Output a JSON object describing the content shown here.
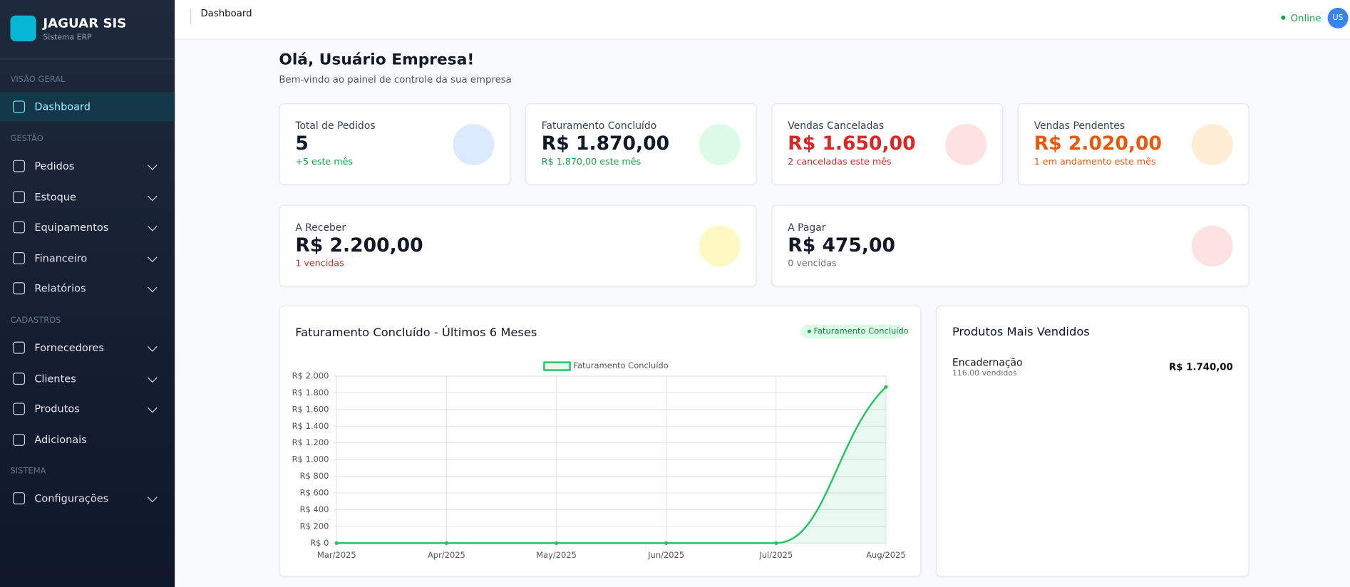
{
  "brand": {
    "name": "JAGUAR SIS",
    "subtitle": "Sistema ERP"
  },
  "sidebar": {
    "sections": [
      {
        "title": "VISÃO GERAL",
        "items": [
          "Dashboard"
        ]
      },
      {
        "title": "GESTÃO",
        "items": [
          "Pedidos",
          "Estoque",
          "Equipamentos",
          "Financeiro",
          "Relatórios"
        ]
      },
      {
        "title": "CADASTROS",
        "items": [
          "Fornecedores",
          "Clientes",
          "Produtos",
          "Adicionais"
        ]
      },
      {
        "title": "SISTEMA",
        "items": [
          "Configurações"
        ]
      }
    ]
  },
  "header": {
    "breadcrumb": "Dashboard",
    "status": "Online",
    "avatar": "US"
  },
  "greeting": {
    "title": "Olá, Usuário Empresa!",
    "subtitle": "Bem-vindo ao painel de controle da sua empresa"
  },
  "cards": [
    {
      "label": "Total de Pedidos",
      "value": "5",
      "note": "+5 este mês"
    },
    {
      "label": "Faturamento Concluído",
      "value": "R$ 1.870,00",
      "note": "R$ 1.870,00 este mês"
    },
    {
      "label": "Vendas Canceladas",
      "value": "R$ 1.650,00",
      "note": "2 canceladas este mês"
    },
    {
      "label": "Vendas Pendentes",
      "value": "R$ 2.020,00",
      "note": "1 em andamento este mês"
    },
    {
      "label": "A Receber",
      "value": "R$ 2.200,00",
      "note": "1 vencidas"
    },
    {
      "label": "A Pagar",
      "value": "R$ 475,00",
      "note": "0 vencidas"
    }
  ],
  "chart_data": {
    "type": "line",
    "title": "Faturamento Concluído - Últimos 6 Meses",
    "badge": "Faturamento Concluído",
    "categories": [
      "Mar/2025",
      "Apr/2025",
      "May/2025",
      "Jun/2025",
      "Jul/2025",
      "Aug/2025"
    ],
    "series": [
      {
        "name": "Faturamento Concluído",
        "color": "#22c55e",
        "values": [
          0,
          0,
          0,
          0,
          0,
          1870
        ]
      }
    ],
    "ylim": [
      0,
      2000
    ],
    "yticks": [
      {
        "value": 0,
        "label": "R$ 0"
      },
      {
        "value": 200,
        "label": "R$ 200"
      },
      {
        "value": 400,
        "label": "R$ 400"
      },
      {
        "value": 600,
        "label": "R$ 600"
      },
      {
        "value": 800,
        "label": "R$ 800"
      },
      {
        "value": 1000,
        "label": "R$ 1.000"
      },
      {
        "value": 1200,
        "label": "R$ 1.200"
      },
      {
        "value": 1400,
        "label": "R$ 1.400"
      },
      {
        "value": 1600,
        "label": "R$ 1.600"
      },
      {
        "value": 1800,
        "label": "R$ 1.800"
      },
      {
        "value": 2000,
        "label": "R$ 2.000"
      }
    ],
    "grid": true,
    "legend": "top"
  },
  "top_products": {
    "title": "Produtos Mais Vendidos",
    "items": [
      {
        "name": "Encadernação",
        "qty": "116.00 vendidos",
        "total": "R$ 1.740,00"
      }
    ]
  }
}
